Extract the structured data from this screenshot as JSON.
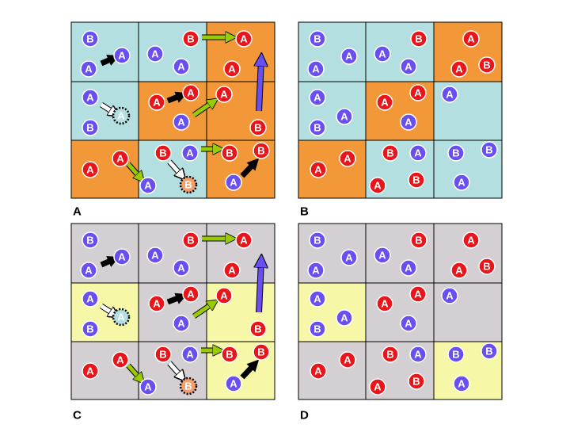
{
  "panels": [
    {
      "label": "A",
      "tokens": [
        "B",
        "A",
        "A",
        "A",
        "A",
        "B",
        "A",
        "A",
        "A",
        "A",
        "B",
        "A",
        "A",
        "A",
        "A",
        "B",
        "A",
        "A",
        "A",
        "B",
        "A",
        "B",
        "B",
        "B",
        "A"
      ]
    },
    {
      "label": "B",
      "tokens": [
        "B",
        "A",
        "A",
        "A",
        "A",
        "B",
        "A",
        "A",
        "B",
        "A",
        "A",
        "B",
        "A",
        "A",
        "A",
        "A",
        "A",
        "A",
        "A",
        "B",
        "A",
        "B",
        "B",
        "B",
        "A"
      ]
    },
    {
      "label": "C",
      "tokens": [
        "B",
        "A",
        "A",
        "A",
        "A",
        "B",
        "A",
        "A",
        "A",
        "A",
        "B",
        "A",
        "A",
        "A",
        "A",
        "B",
        "A",
        "A",
        "A",
        "B",
        "A",
        "B",
        "B",
        "B",
        "A"
      ]
    },
    {
      "label": "D",
      "tokens": [
        "B",
        "A",
        "A",
        "A",
        "A",
        "B",
        "A",
        "A",
        "B",
        "A",
        "A",
        "B",
        "A",
        "A",
        "A",
        "A",
        "A",
        "A",
        "A",
        "B",
        "A",
        "B",
        "B",
        "B",
        "A"
      ]
    }
  ]
}
